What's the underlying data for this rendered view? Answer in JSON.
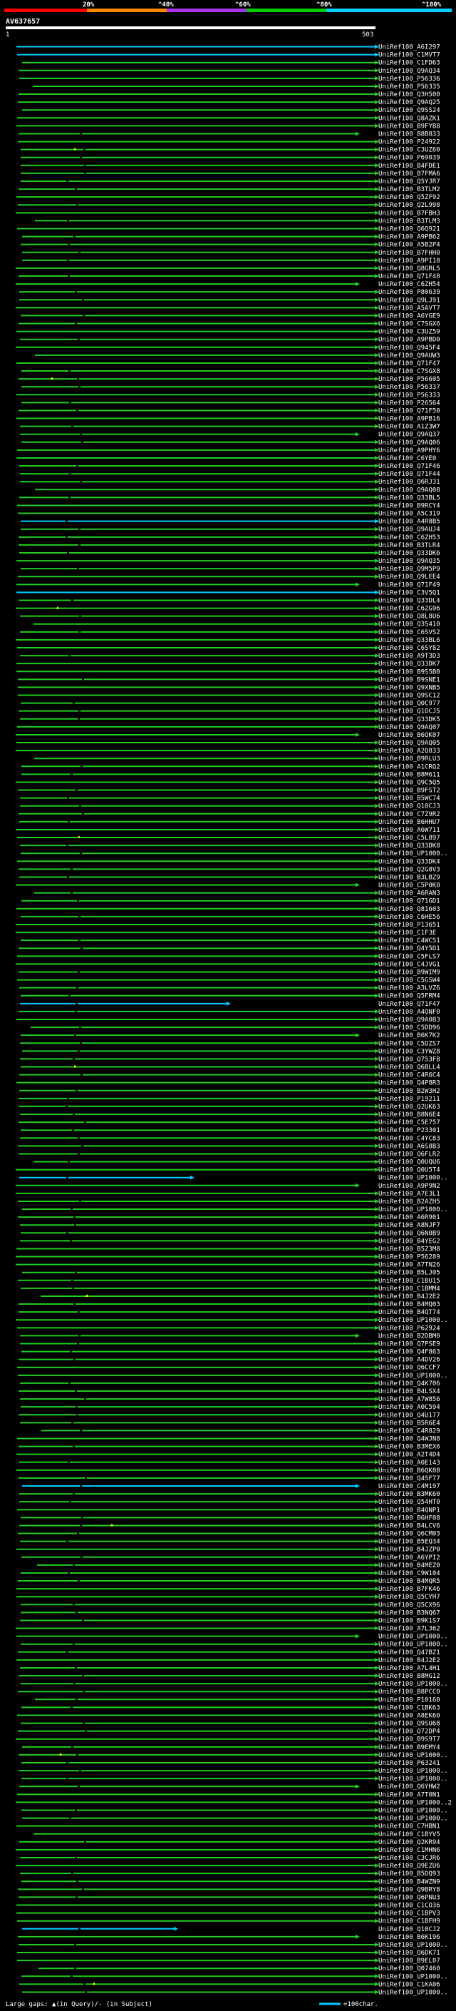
{
  "chart_data": {
    "type": "alignment-graphic",
    "query_id": "AV637657",
    "query_start": "1",
    "query_end": "503",
    "identity_scale": {
      "ticks": [
        "20%",
        "^40%",
        "^60%",
        "^80%",
        "^100%"
      ],
      "colors": [
        "#ff0000",
        "#ff8800",
        "#aa33ee",
        "#00cc00",
        "#00d0ff"
      ]
    },
    "legend": {
      "text": "Large gaps: ▲(in Query)/- (in Subject)",
      "scale_text": "=100char."
    },
    "colors": {
      "high": "#00ccff",
      "mid": "#22cc22",
      "gap": "#ffff00",
      "bg": "#000000"
    },
    "hits": [
      {
        "id": "UniRef100_A6I297",
        "color": "high"
      },
      {
        "id": "UniRef100_C1MVT7",
        "color": "high"
      },
      {
        "id": "UniRef100_C1FD63",
        "color": "mid"
      },
      {
        "id": "UniRef100_Q9AQ34",
        "color": "mid"
      },
      {
        "id": "UniRef100_P56336",
        "color": "mid"
      },
      {
        "id": "UniRef100_P56335",
        "color": "mid"
      },
      {
        "id": "UniRef100_Q3H500",
        "color": "mid"
      },
      {
        "id": "UniRef100_Q9AQ25",
        "color": "mid"
      },
      {
        "id": "UniRef100_Q9SS24",
        "color": "mid"
      },
      {
        "id": "UniRef100_Q8AZK1",
        "color": "mid"
      },
      {
        "id": "UniRef100_B9FYB8",
        "color": "mid"
      },
      {
        "id": "UniRef100_B8B833",
        "color": "mid"
      },
      {
        "id": "UniRef100_P24922",
        "color": "mid"
      },
      {
        "id": "UniRef100_C3UZ60",
        "color": "mid"
      },
      {
        "id": "UniRef100_P69039",
        "color": "mid"
      },
      {
        "id": "UniRef100_B4FDE1",
        "color": "mid"
      },
      {
        "id": "UniRef100_B7FMA6",
        "color": "mid"
      },
      {
        "id": "UniRef100_Q5YJR7",
        "color": "mid"
      },
      {
        "id": "UniRef100_B3TLM2",
        "color": "mid"
      },
      {
        "id": "UniRef100_Q5ZF92",
        "color": "mid"
      },
      {
        "id": "UniRef100_Q2L998",
        "color": "mid"
      },
      {
        "id": "UniRef100_B7FBH3",
        "color": "mid"
      },
      {
        "id": "UniRef100_B3TLM3",
        "color": "mid"
      },
      {
        "id": "UniRef100_Q6Q921",
        "color": "mid"
      },
      {
        "id": "UniRef100_A9PB62",
        "color": "mid"
      },
      {
        "id": "UniRef100_A5B2P4",
        "color": "mid"
      },
      {
        "id": "UniRef100_B7FHH0",
        "color": "mid"
      },
      {
        "id": "UniRef100_A9PI18",
        "color": "mid"
      },
      {
        "id": "UniRef100_Q8GRL5",
        "color": "mid"
      },
      {
        "id": "UniRef100_Q71F48",
        "color": "mid"
      },
      {
        "id": "UniRef100_C6ZH54",
        "color": "mid"
      },
      {
        "id": "UniRef100_P80639",
        "color": "mid"
      },
      {
        "id": "UniRef100_Q9LJ91",
        "color": "mid"
      },
      {
        "id": "UniRef100_A5AVT7",
        "color": "mid"
      },
      {
        "id": "UniRef100_A6YGE9",
        "color": "mid"
      },
      {
        "id": "UniRef100_C7SGX6",
        "color": "mid"
      },
      {
        "id": "UniRef100_C3UZ59",
        "color": "mid"
      },
      {
        "id": "UniRef100_A9PBD0",
        "color": "mid"
      },
      {
        "id": "UniRef100_Q945F4",
        "color": "mid"
      },
      {
        "id": "UniRef100_Q9AUW3",
        "color": "mid"
      },
      {
        "id": "UniRef100_Q71F47",
        "color": "mid"
      },
      {
        "id": "UniRef100_C7SGX8",
        "color": "mid"
      },
      {
        "id": "UniRef100_P56605",
        "color": "mid"
      },
      {
        "id": "UniRef100_P56337",
        "color": "mid"
      },
      {
        "id": "UniRef100_P56333",
        "color": "mid"
      },
      {
        "id": "UniRef100_P26564",
        "color": "mid"
      },
      {
        "id": "UniRef100_Q71F50",
        "color": "mid"
      },
      {
        "id": "UniRef100_A9PB16",
        "color": "mid"
      },
      {
        "id": "UniRef100_A1Z3W7",
        "color": "mid"
      },
      {
        "id": "UniRef100_Q9AQ37",
        "color": "mid"
      },
      {
        "id": "UniRef100_Q9AQ06",
        "color": "mid"
      },
      {
        "id": "UniRef100_A9PHY6",
        "color": "mid"
      },
      {
        "id": "UniRef100_C6YE0",
        "color": "mid"
      },
      {
        "id": "UniRef100_Q71F46",
        "color": "mid"
      },
      {
        "id": "UniRef100_Q71F44",
        "color": "mid"
      },
      {
        "id": "UniRef100_Q6RJ31",
        "color": "mid"
      },
      {
        "id": "UniRef100_Q9AQ08",
        "color": "mid"
      },
      {
        "id": "UniRef100_Q33BL5",
        "color": "mid"
      },
      {
        "id": "UniRef100_B9RCY4",
        "color": "mid"
      },
      {
        "id": "UniRef100_A5C319",
        "color": "mid"
      },
      {
        "id": "UniRef100_A4R8B5",
        "color": "high"
      },
      {
        "id": "UniRef100_Q9AUJ4",
        "color": "mid"
      },
      {
        "id": "UniRef100_C6ZH53",
        "color": "mid"
      },
      {
        "id": "UniRef100_B3TLR4",
        "color": "mid"
      },
      {
        "id": "UniRef100_Q33DK6",
        "color": "mid"
      },
      {
        "id": "UniRef100_Q9AQ35",
        "color": "mid"
      },
      {
        "id": "UniRef100_Q9M5P9",
        "color": "mid"
      },
      {
        "id": "UniRef100_Q9LEE4",
        "color": "mid"
      },
      {
        "id": "UniRef100_Q71F49",
        "color": "mid"
      },
      {
        "id": "UniRef100_C3V5Q1",
        "color": "high"
      },
      {
        "id": "UniRef100_Q33DL4",
        "color": "mid"
      },
      {
        "id": "UniRef100_C6ZG96",
        "color": "mid"
      },
      {
        "id": "UniRef100_Q8L8U6",
        "color": "mid"
      },
      {
        "id": "UniRef100_Q35410",
        "color": "mid"
      },
      {
        "id": "UniRef100_C6SVS2",
        "color": "mid"
      },
      {
        "id": "UniRef100_Q33BL6",
        "color": "mid"
      },
      {
        "id": "UniRef100_C6SY82",
        "color": "mid"
      },
      {
        "id": "UniRef100_A9T3D3",
        "color": "mid"
      },
      {
        "id": "UniRef100_Q33DK7",
        "color": "mid"
      },
      {
        "id": "UniRef100_B9S5B0",
        "color": "mid"
      },
      {
        "id": "UniRef100_B9SNE1",
        "color": "mid"
      },
      {
        "id": "UniRef100_Q9XNB5",
        "color": "mid"
      },
      {
        "id": "UniRef100_Q9SC12",
        "color": "mid"
      },
      {
        "id": "UniRef100_Q0C977",
        "color": "mid"
      },
      {
        "id": "UniRef100_Q1OCJ5",
        "color": "mid"
      },
      {
        "id": "UniRef100_Q33DK5",
        "color": "mid"
      },
      {
        "id": "UniRef100_Q9AQ07",
        "color": "mid"
      },
      {
        "id": "UniRef100_B6QK07",
        "color": "mid"
      },
      {
        "id": "UniRef100_Q9AQ05",
        "color": "mid"
      },
      {
        "id": "UniRef100_A2Q833",
        "color": "mid"
      },
      {
        "id": "UniRef100_B9RLU3",
        "color": "mid"
      },
      {
        "id": "UniRef100_A1CRQ2",
        "color": "mid"
      },
      {
        "id": "UniRef100_B8M611",
        "color": "mid"
      },
      {
        "id": "UniRef100_Q9C5Q5",
        "color": "mid"
      },
      {
        "id": "UniRef100_B9FST2",
        "color": "mid"
      },
      {
        "id": "UniRef100_B5WC74",
        "color": "mid"
      },
      {
        "id": "UniRef100_Q10CJ3",
        "color": "mid"
      },
      {
        "id": "UniRef100_C7Z9R2",
        "color": "mid"
      },
      {
        "id": "UniRef100_B6HHU7",
        "color": "mid"
      },
      {
        "id": "UniRef100_A6W711",
        "color": "mid"
      },
      {
        "id": "UniRef100_C5L897",
        "color": "mid"
      },
      {
        "id": "UniRef100_Q33DK8",
        "color": "mid"
      },
      {
        "id": "UniRef100_UP1000..",
        "color": "mid"
      },
      {
        "id": "UniRef100_Q33DK4",
        "color": "mid"
      },
      {
        "id": "UniRef100_Q2G8V3",
        "color": "mid"
      },
      {
        "id": "UniRef100_B3LBZ9",
        "color": "mid"
      },
      {
        "id": "UniRef100_C5P0K0",
        "color": "mid"
      },
      {
        "id": "UniRef100_A6RAN3",
        "color": "mid"
      },
      {
        "id": "UniRef100_Q71GD1",
        "color": "mid"
      },
      {
        "id": "UniRef100_Q81603",
        "color": "mid"
      },
      {
        "id": "UniRef100_C6HE56",
        "color": "mid"
      },
      {
        "id": "UniRef100_P13651",
        "color": "mid"
      },
      {
        "id": "UniRef100_C1F3E",
        "color": "mid"
      },
      {
        "id": "UniRef100_C4WCS1",
        "color": "mid"
      },
      {
        "id": "UniRef100_Q4Y5D1",
        "color": "mid"
      },
      {
        "id": "UniRef100_C5FLS7",
        "color": "mid"
      },
      {
        "id": "UniRef100_C4JVG1",
        "color": "mid"
      },
      {
        "id": "UniRef100_B9WIM9",
        "color": "mid"
      },
      {
        "id": "UniRef100_C5GSW4",
        "color": "mid"
      },
      {
        "id": "UniRef100_A3LVZ6",
        "color": "mid"
      },
      {
        "id": "UniRef100_Q5FRM4",
        "color": "mid"
      },
      {
        "id": "UniRef100_Q71F47",
        "color": "high"
      },
      {
        "id": "UniRef100_A4QNF0",
        "color": "mid"
      },
      {
        "id": "UniRef100_Q9A0B3",
        "color": "mid"
      },
      {
        "id": "UniRef100_C5DD96",
        "color": "mid"
      },
      {
        "id": "UniRef100_B6K7K2",
        "color": "mid"
      },
      {
        "id": "UniRef100_C5DZS7",
        "color": "mid"
      },
      {
        "id": "UniRef100_C3YWZ8",
        "color": "mid"
      },
      {
        "id": "UniRef100_Q753F8",
        "color": "mid"
      },
      {
        "id": "UniRef100_Q6BLL4",
        "color": "mid"
      },
      {
        "id": "UniRef100_C4R6C4",
        "color": "mid"
      },
      {
        "id": "UniRef100_Q4P8R3",
        "color": "mid"
      },
      {
        "id": "UniRef100_B2W3H2",
        "color": "mid"
      },
      {
        "id": "UniRef100_P19211",
        "color": "mid"
      },
      {
        "id": "UniRef100_Q2UK63",
        "color": "mid"
      },
      {
        "id": "UniRef100_B8N6E4",
        "color": "mid"
      },
      {
        "id": "UniRef100_C5E757",
        "color": "mid"
      },
      {
        "id": "UniRef100_P23301",
        "color": "mid"
      },
      {
        "id": "UniRef100_C4YC83",
        "color": "mid"
      },
      {
        "id": "UniRef100_A6S8B3",
        "color": "mid"
      },
      {
        "id": "UniRef100_Q6FLR2",
        "color": "mid"
      },
      {
        "id": "UniRef100_Q0UQU6",
        "color": "mid"
      },
      {
        "id": "UniRef100_Q0U5T4",
        "color": "mid"
      },
      {
        "id": "UniRef100_UP1000..",
        "color": "high"
      },
      {
        "id": "UniRef100_A9P9N2",
        "color": "mid"
      },
      {
        "id": "UniRef100_A7E3L1",
        "color": "mid"
      },
      {
        "id": "UniRef100_B2AZH5",
        "color": "mid"
      },
      {
        "id": "UniRef100_UP1000..",
        "color": "mid"
      },
      {
        "id": "UniRef100_A6R901",
        "color": "mid"
      },
      {
        "id": "UniRef100_A8NJF7",
        "color": "mid"
      },
      {
        "id": "UniRef100_Q6N0B9",
        "color": "mid"
      },
      {
        "id": "UniRef100_B4YEG2",
        "color": "mid"
      },
      {
        "id": "UniRef100_B5Z3M8",
        "color": "mid"
      },
      {
        "id": "UniRef100_P56289",
        "color": "mid"
      },
      {
        "id": "UniRef100_A7TN26",
        "color": "mid"
      },
      {
        "id": "UniRef100_B5LJ05",
        "color": "mid"
      },
      {
        "id": "UniRef100_C1BU15",
        "color": "mid"
      },
      {
        "id": "UniRef100_C1BMM4",
        "color": "mid"
      },
      {
        "id": "UniRef100_B4J2E2",
        "color": "mid"
      },
      {
        "id": "UniRef100_B4MQ03",
        "color": "mid"
      },
      {
        "id": "UniRef100_B4QT74",
        "color": "mid"
      },
      {
        "id": "UniRef100_UP1000..",
        "color": "mid"
      },
      {
        "id": "UniRef100_P62924",
        "color": "mid"
      },
      {
        "id": "UniRef100_B2DBM0",
        "color": "mid"
      },
      {
        "id": "UniRef100_Q7PSE9",
        "color": "mid"
      },
      {
        "id": "UniRef100_Q4F863",
        "color": "mid"
      },
      {
        "id": "UniRef100_A4DV26",
        "color": "mid"
      },
      {
        "id": "UniRef100_Q6CCF7",
        "color": "mid"
      },
      {
        "id": "UniRef100_UP1000..",
        "color": "mid"
      },
      {
        "id": "UniRef100_Q4K706",
        "color": "mid"
      },
      {
        "id": "UniRef100_B4LSX4",
        "color": "mid"
      },
      {
        "id": "UniRef100_A7W856",
        "color": "mid"
      },
      {
        "id": "UniRef100_A0C594",
        "color": "mid"
      },
      {
        "id": "UniRef100_Q4U177",
        "color": "mid"
      },
      {
        "id": "UniRef100_B5R6E4",
        "color": "mid"
      },
      {
        "id": "UniRef100_C4R829",
        "color": "mid"
      },
      {
        "id": "UniRef100_Q4WJN8",
        "color": "mid"
      },
      {
        "id": "UniRef100_B3MEX6",
        "color": "mid"
      },
      {
        "id": "UniRef100_A2T4D4",
        "color": "mid"
      },
      {
        "id": "UniRef100_A0E143",
        "color": "mid"
      },
      {
        "id": "UniRef100_B6QK08",
        "color": "mid"
      },
      {
        "id": "UniRef100_Q4SF77",
        "color": "mid"
      },
      {
        "id": "UniRef100_C4M197",
        "color": "high"
      },
      {
        "id": "UniRef100_B3MK60",
        "color": "mid"
      },
      {
        "id": "UniRef100_Q54HT0",
        "color": "mid"
      },
      {
        "id": "UniRef100_B4QNP1",
        "color": "mid"
      },
      {
        "id": "UniRef100_B6HF08",
        "color": "mid"
      },
      {
        "id": "UniRef100_B4LCV6",
        "color": "mid"
      },
      {
        "id": "UniRef100_Q6CM03",
        "color": "mid"
      },
      {
        "id": "UniRef100_B5EQ34",
        "color": "mid"
      },
      {
        "id": "UniRef100_B4JZP0",
        "color": "mid"
      },
      {
        "id": "UniRef100_A6YPI2",
        "color": "mid"
      },
      {
        "id": "UniRef100_B4MEZ0",
        "color": "mid"
      },
      {
        "id": "UniRef100_C9W104",
        "color": "mid"
      },
      {
        "id": "UniRef100_B4MQR5",
        "color": "mid"
      },
      {
        "id": "UniRef100_B7FK46",
        "color": "mid"
      },
      {
        "id": "UniRef100_Q5CYH7",
        "color": "mid"
      },
      {
        "id": "UniRef100_Q5CX96",
        "color": "mid"
      },
      {
        "id": "UniRef100_B3NQ67",
        "color": "mid"
      },
      {
        "id": "UniRef100_B9K1S7",
        "color": "mid"
      },
      {
        "id": "UniRef100_A7L362",
        "color": "mid"
      },
      {
        "id": "UniRef100_UP1000..",
        "color": "mid"
      },
      {
        "id": "UniRef100_UP1000..",
        "color": "mid"
      },
      {
        "id": "UniRef100_Q47BZ1",
        "color": "mid"
      },
      {
        "id": "UniRef100_B4J2E2",
        "color": "mid"
      },
      {
        "id": "UniRef100_A7L4H1",
        "color": "mid"
      },
      {
        "id": "UniRef100_B8MG12",
        "color": "mid"
      },
      {
        "id": "UniRef100_UP1000..",
        "color": "mid"
      },
      {
        "id": "UniRef100_B8PCC0",
        "color": "mid"
      },
      {
        "id": "UniRef100_P10160",
        "color": "mid"
      },
      {
        "id": "UniRef100_C1BK63",
        "color": "mid"
      },
      {
        "id": "UniRef100_A8EK60",
        "color": "mid"
      },
      {
        "id": "UniRef100_Q9SU68",
        "color": "mid"
      },
      {
        "id": "UniRef100_Q72DP4",
        "color": "mid"
      },
      {
        "id": "UniRef100_B9S9T7",
        "color": "mid"
      },
      {
        "id": "UniRef100_B9EMY4",
        "color": "mid"
      },
      {
        "id": "UniRef100_UP1000..",
        "color": "mid"
      },
      {
        "id": "UniRef100_P63241",
        "color": "mid"
      },
      {
        "id": "UniRef100_UP1000..",
        "color": "mid"
      },
      {
        "id": "UniRef100_UP1000..",
        "color": "mid"
      },
      {
        "id": "UniRef100_Q6YHW2",
        "color": "mid"
      },
      {
        "id": "UniRef100_A7T0N1",
        "color": "mid"
      },
      {
        "id": "UniRef100_UP1000..2",
        "color": "mid"
      },
      {
        "id": "UniRef100_UP1000..",
        "color": "mid"
      },
      {
        "id": "UniRef100_UP1000..",
        "color": "mid"
      },
      {
        "id": "UniRef100_C7HBN1",
        "color": "mid"
      },
      {
        "id": "UniRef100_C1BYV5",
        "color": "mid"
      },
      {
        "id": "UniRef100_Q2KR94",
        "color": "mid"
      },
      {
        "id": "UniRef100_C1MHN6",
        "color": "mid"
      },
      {
        "id": "UniRef100_C3CJR6",
        "color": "mid"
      },
      {
        "id": "UniRef100_Q9EZU6",
        "color": "mid"
      },
      {
        "id": "UniRef100_B5DQ93",
        "color": "mid"
      },
      {
        "id": "UniRef100_B4WZN9",
        "color": "mid"
      },
      {
        "id": "UniRef100_Q9BRY8",
        "color": "mid"
      },
      {
        "id": "UniRef100_Q6PNU3",
        "color": "mid"
      },
      {
        "id": "UniRef100_C1CO36",
        "color": "mid"
      },
      {
        "id": "UniRef100_C1BPV3",
        "color": "mid"
      },
      {
        "id": "UniRef100_C1BFH9",
        "color": "mid"
      },
      {
        "id": "UniRef100_Q10CJ2",
        "color": "high"
      },
      {
        "id": "UniRef100_B6K196",
        "color": "mid"
      },
      {
        "id": "UniRef100_UP1000..",
        "color": "mid"
      },
      {
        "id": "UniRef100_Q6DK71",
        "color": "mid"
      },
      {
        "id": "UniRef100_B9EL07",
        "color": "mid"
      },
      {
        "id": "UniRef100_Q07460",
        "color": "mid"
      },
      {
        "id": "UniRef100_UP1000..",
        "color": "mid"
      },
      {
        "id": "UniRef100_C1KA06",
        "color": "mid"
      },
      {
        "id": "UniRef100_UP1000..",
        "color": "mid"
      }
    ]
  }
}
